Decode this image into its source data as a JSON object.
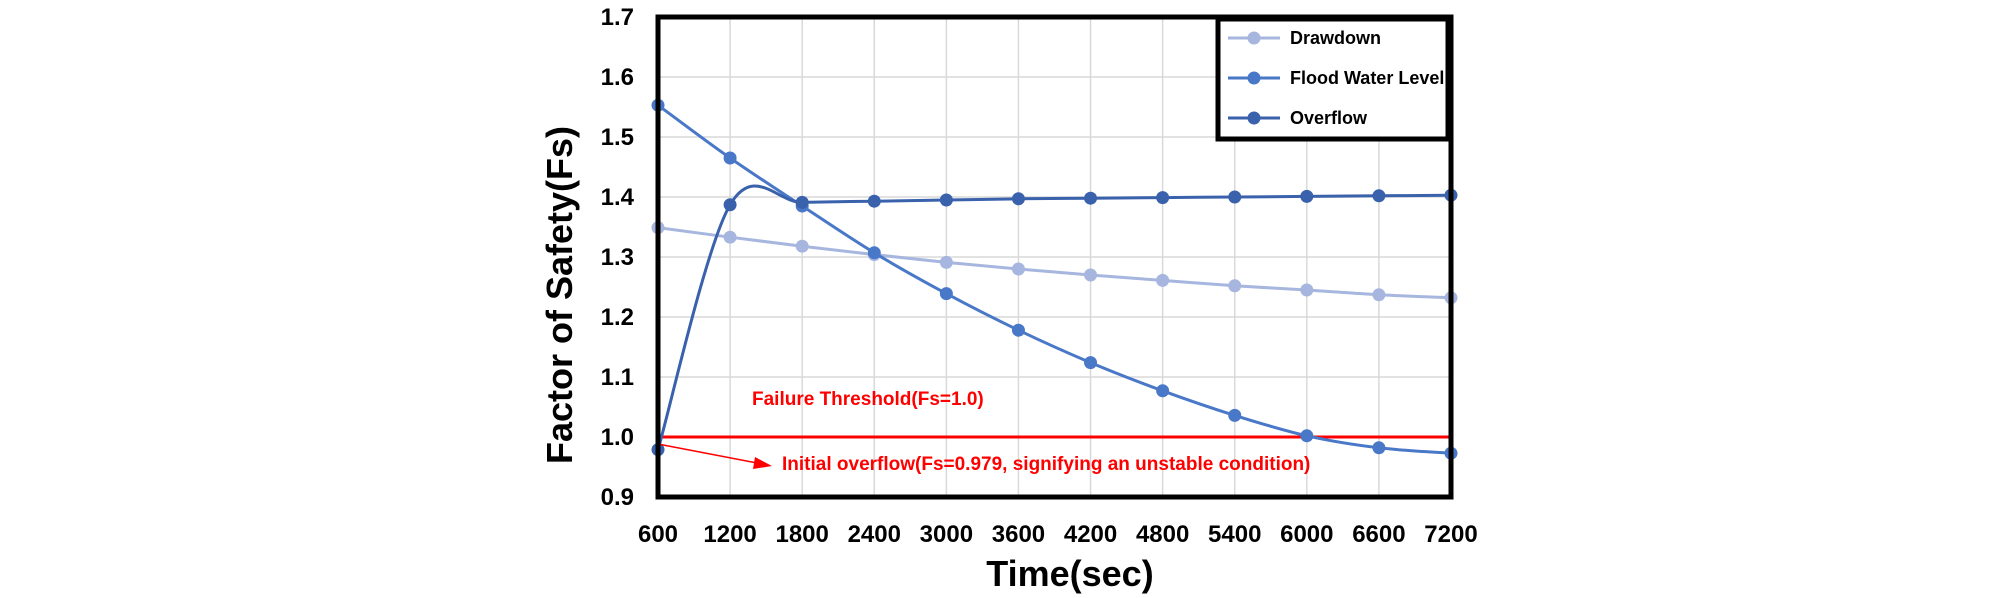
{
  "chart_data": {
    "type": "line",
    "title": "",
    "xlabel": "Time(sec)",
    "ylabel": "Factor of Safety(Fs)",
    "x": [
      600,
      1200,
      1800,
      2400,
      3000,
      3600,
      4200,
      4800,
      5400,
      6000,
      6600,
      7200
    ],
    "xlim": [
      600,
      7200
    ],
    "ylim": [
      0.9,
      1.7
    ],
    "yticks": [
      "0.9",
      "1.0",
      "1.1",
      "1.2",
      "1.3",
      "1.4",
      "1.5",
      "1.6",
      "1.7"
    ],
    "grid": true,
    "legend_position": "top-right",
    "series": [
      {
        "name": "Drawdown",
        "color": "#a6b6de",
        "values": [
          1.349,
          1.333,
          1.318,
          1.304,
          1.291,
          1.28,
          1.27,
          1.261,
          1.252,
          1.245,
          1.237,
          1.232
        ]
      },
      {
        "name": "Flood Water Level",
        "color": "#4a78c8",
        "values": [
          1.553,
          1.465,
          1.385,
          1.307,
          1.239,
          1.178,
          1.124,
          1.077,
          1.036,
          1.002,
          0.982,
          0.973
        ]
      },
      {
        "name": "Overflow",
        "color": "#3a62ac",
        "values": [
          0.979,
          1.387,
          1.391,
          1.393,
          1.395,
          1.397,
          1.398,
          1.399,
          1.4,
          1.401,
          1.402,
          1.403
        ]
      }
    ],
    "threshold": {
      "label": "Failure Threshold(Fs=1.0)",
      "value": 1.0,
      "color": "#ff0000"
    },
    "annotation": {
      "label": "Initial overflow(Fs=0.979, signifying an unstable condition)",
      "x": 600,
      "y": 0.979,
      "color": "#ff0000"
    }
  }
}
